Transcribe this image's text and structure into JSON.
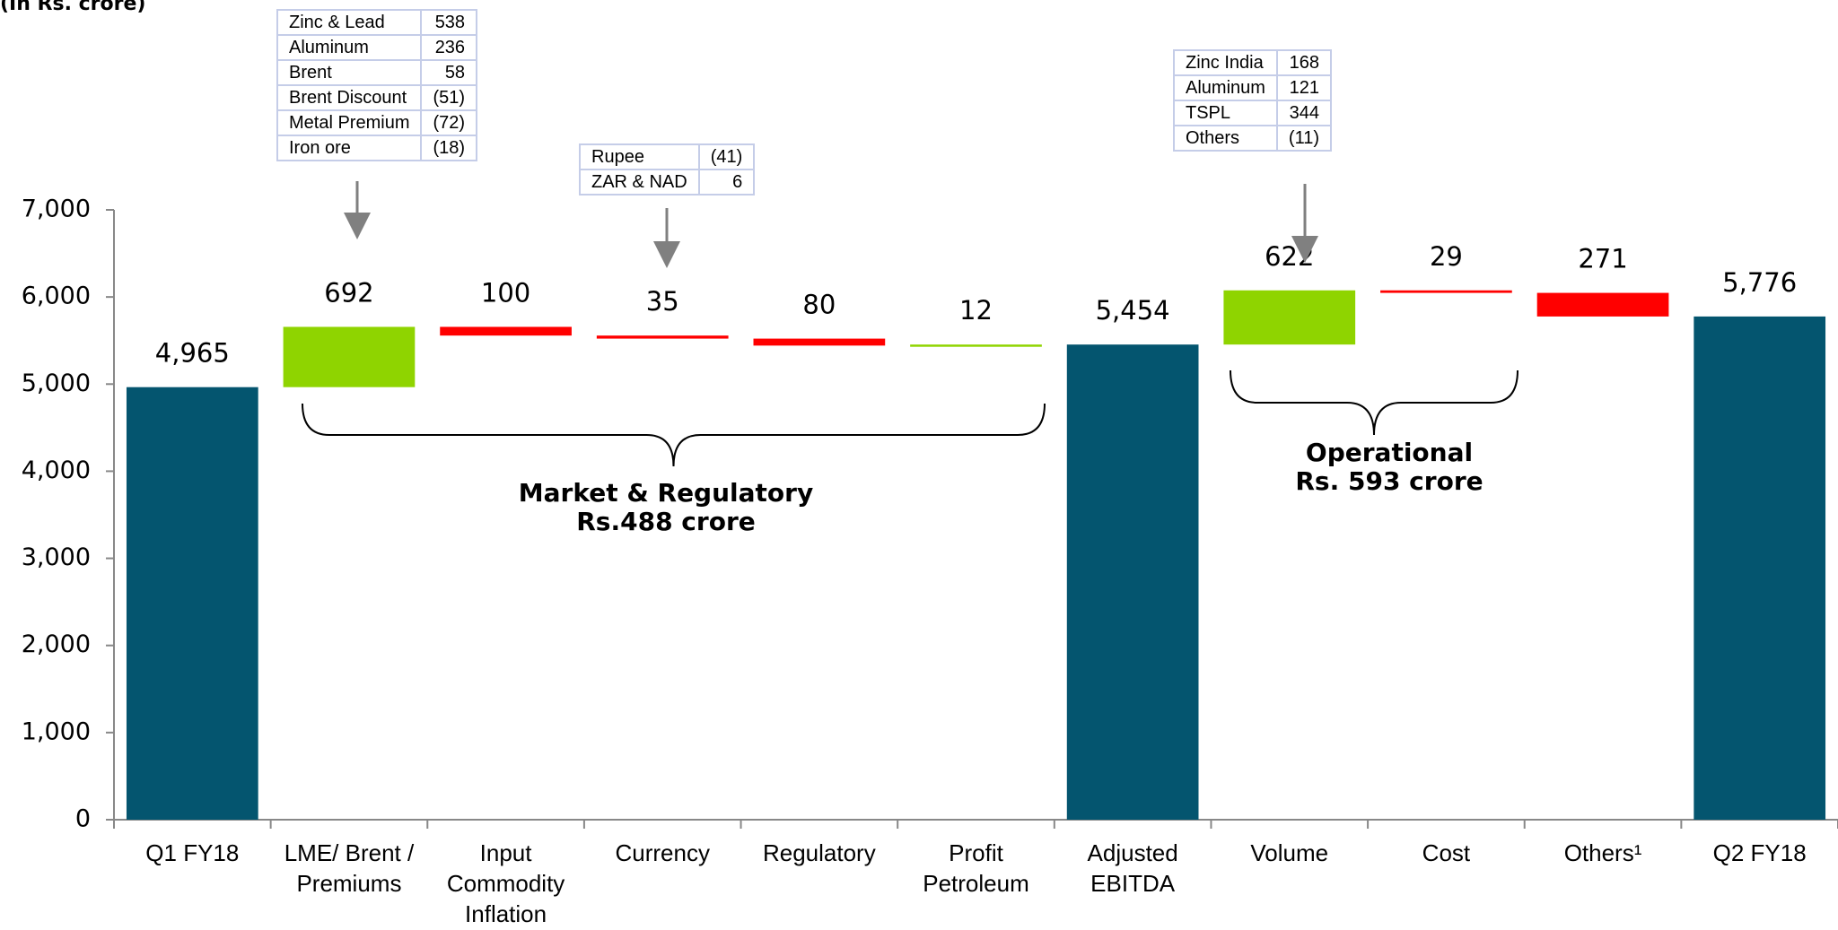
{
  "chart_data": {
    "type": "waterfall",
    "subtitle": "(In Rs. crore)",
    "categories": [
      "Q1 FY18",
      "LME/ Brent / Premiums",
      "Input Commodity Inflation",
      "Currency",
      "Regulatory",
      "Profit Petroleum",
      "Adjusted EBITDA",
      "Volume",
      "Cost",
      "Others¹",
      "Q2 FY18"
    ],
    "values": [
      4965,
      692,
      100,
      35,
      80,
      12,
      5454,
      622,
      29,
      271,
      5776
    ],
    "value_labels": [
      "4,965",
      "692",
      "100",
      "35",
      "80",
      "12",
      "5,454",
      "622",
      "29",
      "271",
      "5,776"
    ],
    "kinds": [
      "total",
      "increase",
      "decrease",
      "decrease",
      "decrease",
      "increase",
      "total",
      "increase",
      "decrease",
      "decrease",
      "total"
    ],
    "colors": {
      "total": "#04556f",
      "increase": "#8fd400",
      "decrease": "#ff0000"
    },
    "ylim": [
      0,
      7000
    ],
    "yticks": [
      0,
      {
        "value": 1000,
        "label": "1,000"
      },
      {
        "value": 2000,
        "label": "2,000"
      },
      {
        "value": 3000,
        "label": "3,000"
      },
      {
        "value": 4000,
        "label": "4,000"
      },
      {
        "value": 5000,
        "label": "5,000"
      },
      {
        "value": 6000,
        "label": "6,000"
      },
      {
        "value": 7000,
        "label": "7,000"
      }
    ],
    "annotations": [
      {
        "rows": [
          [
            "Zinc & Lead",
            "538"
          ],
          [
            "Aluminum",
            "236"
          ],
          [
            "Brent",
            "58"
          ],
          [
            "Brent Discount",
            "(51)"
          ],
          [
            "Metal Premium",
            "(72)"
          ],
          [
            "Iron ore",
            "(18)"
          ]
        ]
      },
      {
        "rows": [
          [
            "Rupee",
            "(41)"
          ],
          [
            "ZAR & NAD",
            "6"
          ]
        ]
      },
      {
        "rows": [
          [
            "Zinc India",
            "168"
          ],
          [
            "Aluminum",
            "121"
          ],
          [
            "TSPL",
            "344"
          ],
          [
            "Others",
            "(11)"
          ]
        ]
      }
    ],
    "groups": [
      {
        "lines": [
          "Market & Regulatory",
          "Rs.488 crore"
        ]
      },
      {
        "lines": [
          "Operational",
          "Rs. 593 crore"
        ]
      }
    ]
  }
}
